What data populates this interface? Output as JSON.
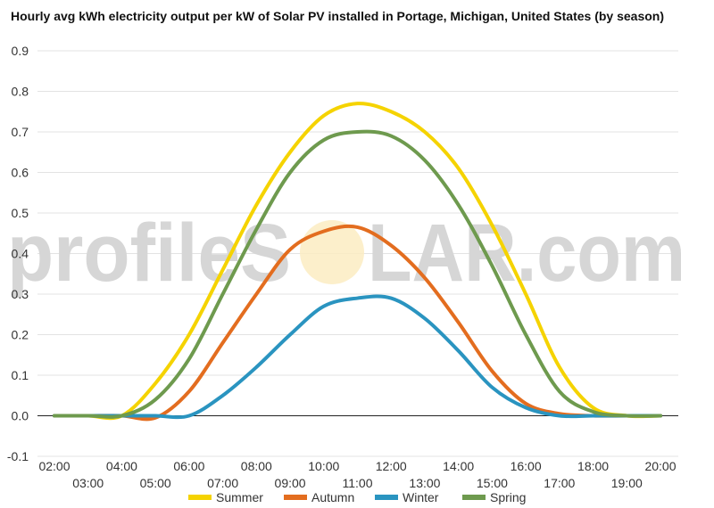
{
  "chart_data": {
    "type": "line",
    "title": "Hourly avg kWh electricity output per kW of Solar PV installed in Portage, Michigan, United States (by season)",
    "xlabel": "",
    "ylabel": "",
    "ylim": [
      -0.1,
      0.9
    ],
    "yticks": [
      "-0.1",
      "0.0",
      "0.1",
      "0.2",
      "0.3",
      "0.4",
      "0.5",
      "0.6",
      "0.7",
      "0.8",
      "0.9"
    ],
    "grid": true,
    "legend_position": "bottom",
    "categories": [
      "02:00",
      "03:00",
      "04:00",
      "05:00",
      "06:00",
      "07:00",
      "08:00",
      "09:00",
      "10:00",
      "11:00",
      "12:00",
      "13:00",
      "14:00",
      "15:00",
      "16:00",
      "17:00",
      "18:00",
      "19:00",
      "20:00"
    ],
    "series": [
      {
        "name": "Summer",
        "color": "#f5d300",
        "values": [
          0,
          0,
          0,
          0.08,
          0.2,
          0.36,
          0.52,
          0.65,
          0.74,
          0.77,
          0.75,
          0.7,
          0.61,
          0.47,
          0.3,
          0.12,
          0.02,
          0,
          0
        ]
      },
      {
        "name": "Autumn",
        "color": "#e36d1f",
        "values": [
          0,
          0,
          0,
          -0.005,
          0.06,
          0.18,
          0.3,
          0.41,
          0.455,
          0.465,
          0.42,
          0.34,
          0.23,
          0.11,
          0.03,
          0.005,
          0,
          0,
          0
        ]
      },
      {
        "name": "Winter",
        "color": "#2a94c0",
        "values": [
          0,
          0,
          0,
          0,
          0,
          0.05,
          0.12,
          0.2,
          0.27,
          0.29,
          0.29,
          0.24,
          0.16,
          0.07,
          0.02,
          0,
          0,
          0,
          0
        ]
      },
      {
        "name": "Spring",
        "color": "#6e9a4e",
        "values": [
          0,
          0,
          0,
          0.04,
          0.14,
          0.3,
          0.46,
          0.6,
          0.68,
          0.7,
          0.69,
          0.63,
          0.52,
          0.37,
          0.2,
          0.06,
          0.01,
          0,
          0
        ]
      }
    ]
  },
  "watermark": {
    "part1": "profileS",
    "part2": "LAR.com"
  }
}
